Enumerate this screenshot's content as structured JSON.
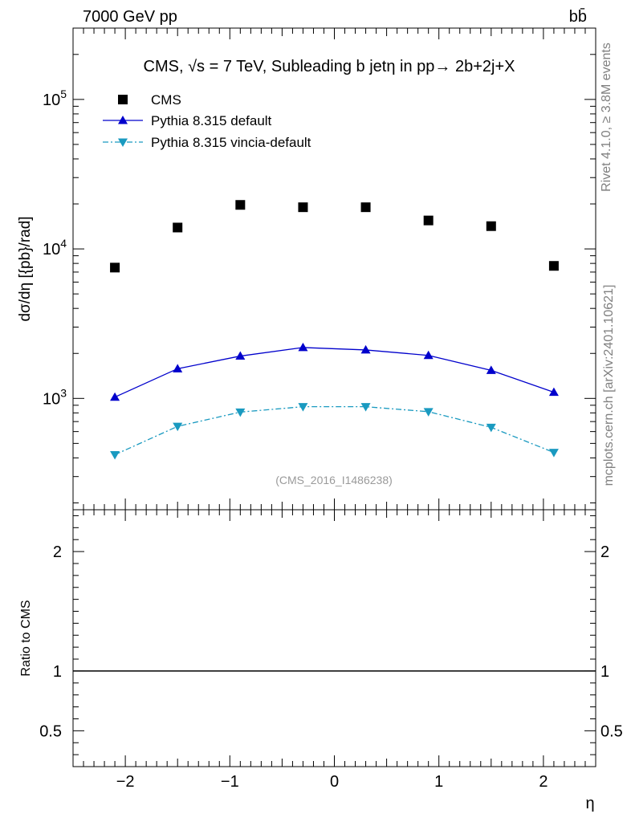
{
  "header": {
    "left": "7000 GeV pp",
    "right": "bb̄"
  },
  "side_labels": {
    "rivet": "Rivet 4.1.0, ≥ 3.8M events",
    "mcplots": "mcplots.cern.ch [arXiv:2401.10621]"
  },
  "chart_data": [
    {
      "type": "line",
      "title": "CMS, √s = 7 TeV, Subleading b jetη in pp→  2b+2j+X",
      "watermark": "(CMS_2016_I1486238)",
      "xlabel": "η",
      "ylabel": "dσ/dη [{pb}/rad]",
      "yscale": "log",
      "xlim": [
        -2.5,
        2.5
      ],
      "ylim": [
        180,
        300000
      ],
      "y_ticks": [
        {
          "value": 1000,
          "mantissa": "10",
          "exp": "3"
        },
        {
          "value": 10000,
          "mantissa": "10",
          "exp": "4"
        },
        {
          "value": 100000,
          "mantissa": "10",
          "exp": "5"
        }
      ],
      "x": [
        -2.1,
        -1.5,
        -0.9,
        -0.3,
        0.3,
        0.9,
        1.5,
        2.1
      ],
      "series": [
        {
          "name": "CMS",
          "marker": "square",
          "color": "#000000",
          "line": "none",
          "values": [
            7500,
            13900,
            19700,
            19000,
            19000,
            15500,
            14200,
            7700
          ]
        },
        {
          "name": "Pythia 8.315 default",
          "marker": "triangle-up",
          "color": "#0000cc",
          "line": "solid",
          "values": [
            1020,
            1580,
            1920,
            2190,
            2110,
            1940,
            1540,
            1100
          ]
        },
        {
          "name": "Pythia 8.315 vincia-default",
          "marker": "triangle-down",
          "color": "#1a9ac0",
          "line": "dashdot",
          "values": [
            420,
            650,
            810,
            880,
            880,
            815,
            640,
            435
          ]
        }
      ]
    },
    {
      "type": "line",
      "xlabel": "η",
      "ylabel": "Ratio to CMS",
      "xlim": [
        -2.5,
        2.5
      ],
      "ylim": [
        0.2,
        2.35
      ],
      "x_ticks": [
        -2,
        -1,
        0,
        1,
        2
      ],
      "x_tick_labels": [
        "−2",
        "−1",
        "0",
        "1",
        "2"
      ],
      "y_ticks": [
        0.5,
        1,
        2
      ],
      "y_tick_labels": [
        "0.5",
        "1",
        "2"
      ],
      "reference_value": 1
    }
  ]
}
